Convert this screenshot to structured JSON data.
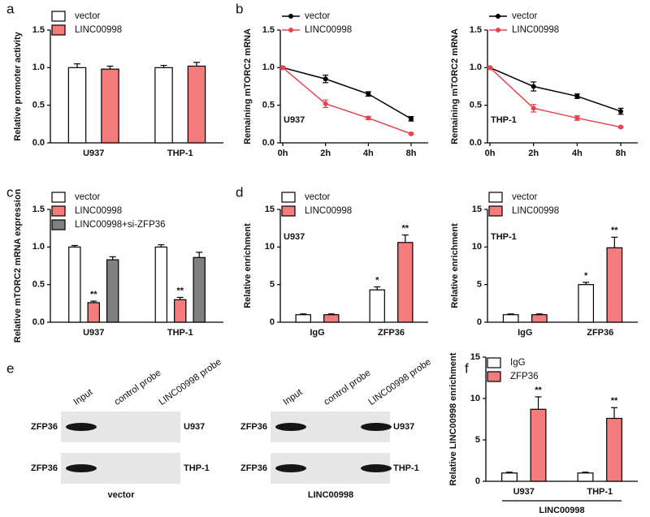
{
  "chart_data": [
    {
      "type": "bar",
      "panel": "a",
      "ylabel": "Relative promoter activity",
      "categories": [
        "U937",
        "THP-1"
      ],
      "series": [
        {
          "name": "vector",
          "color": "#ffffff",
          "values": [
            1.0,
            1.0
          ],
          "errors": [
            0.05,
            0.03
          ]
        },
        {
          "name": "LINC00998",
          "color": "#f47c7c",
          "values": [
            0.98,
            1.02
          ],
          "errors": [
            0.04,
            0.05
          ]
        }
      ],
      "ylim": [
        0,
        1.5
      ],
      "yticks": [
        {
          "value": 0,
          "label": "0.0"
        },
        {
          "value": 0.5,
          "label": "0.5"
        },
        {
          "value": 1,
          "label": "1.0"
        },
        {
          "value": 1.5,
          "label": "1.5"
        }
      ],
      "legend": "top-left"
    },
    {
      "type": "line",
      "panel": "b",
      "ylabel": "Remaining mTORC2 mRNA",
      "annotation": "U937",
      "categories": [
        "0h",
        "2h",
        "4h",
        "8h"
      ],
      "series": [
        {
          "name": "vector",
          "color": "#000000",
          "values": [
            1.0,
            0.85,
            0.65,
            0.32
          ],
          "errors": [
            0.01,
            0.05,
            0.03,
            0.03
          ]
        },
        {
          "name": "LINC00998",
          "color": "#e8434b",
          "values": [
            1.0,
            0.52,
            0.33,
            0.12
          ],
          "errors": [
            0.01,
            0.05,
            0.02,
            0.01
          ]
        }
      ],
      "ylim": [
        0,
        1.5
      ],
      "yticks": [
        {
          "value": 0,
          "label": "0.0"
        },
        {
          "value": 0.5,
          "label": "0.5"
        },
        {
          "value": 1,
          "label": "1.0"
        },
        {
          "value": 1.5,
          "label": "1.5"
        }
      ],
      "legend": "top-left"
    },
    {
      "type": "line",
      "ylabel": "Remaining mTORC2 mRNA",
      "annotation": "THP-1",
      "categories": [
        "0h",
        "2h",
        "4h",
        "8h"
      ],
      "series": [
        {
          "name": "vector",
          "color": "#000000",
          "values": [
            1.0,
            0.75,
            0.62,
            0.42
          ],
          "errors": [
            0.01,
            0.06,
            0.03,
            0.04
          ]
        },
        {
          "name": "LINC00998",
          "color": "#e8434b",
          "values": [
            1.0,
            0.46,
            0.33,
            0.21
          ],
          "errors": [
            0.01,
            0.05,
            0.03,
            0.01
          ]
        }
      ],
      "ylim": [
        0,
        1.5
      ],
      "yticks": [
        {
          "value": 0,
          "label": "0.0"
        },
        {
          "value": 0.5,
          "label": "0.5"
        },
        {
          "value": 1,
          "label": "1.0"
        },
        {
          "value": 1.5,
          "label": "1.5"
        }
      ],
      "legend": "top-left"
    },
    {
      "type": "bar",
      "panel": "c",
      "ylabel": "Relative mTORC2 mRNA expression",
      "categories": [
        "U937",
        "THP-1"
      ],
      "series": [
        {
          "name": "vector",
          "color": "#ffffff",
          "values": [
            1.0,
            1.0
          ],
          "errors": [
            0.02,
            0.03
          ]
        },
        {
          "name": "LINC00998",
          "color": "#f47c7c",
          "values": [
            0.26,
            0.3
          ],
          "errors": [
            0.02,
            0.03
          ],
          "significance": [
            "**",
            "**"
          ]
        },
        {
          "name": "LINC00998+si-ZFP36",
          "color": "#808080",
          "values": [
            0.83,
            0.86
          ],
          "errors": [
            0.04,
            0.07
          ]
        }
      ],
      "ylim": [
        0,
        1.5
      ],
      "yticks": [
        {
          "value": 0,
          "label": "0.0"
        },
        {
          "value": 0.5,
          "label": "0.5"
        },
        {
          "value": 1,
          "label": "1.0"
        },
        {
          "value": 1.5,
          "label": "1.5"
        }
      ],
      "legend": "top-left"
    },
    {
      "type": "bar",
      "panel": "d",
      "ylabel": "Relative enrichment",
      "annotation": "U937",
      "categories": [
        "IgG",
        "ZFP36"
      ],
      "series": [
        {
          "name": "vector",
          "color": "#ffffff",
          "values": [
            1.0,
            4.3
          ],
          "errors": [
            0.1,
            0.4
          ],
          "significance": [
            null,
            "*"
          ]
        },
        {
          "name": "LINC00998",
          "color": "#f47c7c",
          "values": [
            1.0,
            10.6
          ],
          "errors": [
            0.1,
            1.0
          ],
          "significance": [
            null,
            "**"
          ]
        }
      ],
      "ylim": [
        0,
        15
      ],
      "yticks": [
        0,
        5,
        10,
        15
      ],
      "legend": "top-left"
    },
    {
      "type": "bar",
      "ylabel": "Relative enrichment",
      "annotation": "THP-1",
      "categories": [
        "IgG",
        "ZFP36"
      ],
      "series": [
        {
          "name": "vector",
          "color": "#ffffff",
          "values": [
            1.0,
            5.0
          ],
          "errors": [
            0.1,
            0.3
          ],
          "significance": [
            null,
            "*"
          ]
        },
        {
          "name": "LINC00998",
          "color": "#f47c7c",
          "values": [
            1.0,
            9.9
          ],
          "errors": [
            0.1,
            1.4
          ],
          "significance": [
            null,
            "**"
          ]
        }
      ],
      "ylim": [
        0,
        15
      ],
      "yticks": [
        0,
        5,
        10,
        15
      ],
      "legend": "top-left"
    },
    {
      "type": "bar",
      "panel": "f",
      "ylabel": "Relative LINC00998 enrichment",
      "group_label": "LINC00998",
      "categories": [
        "U937",
        "THP-1"
      ],
      "series": [
        {
          "name": "IgG",
          "color": "#ffffff",
          "values": [
            1.0,
            1.0
          ],
          "errors": [
            0.1,
            0.1
          ]
        },
        {
          "name": "ZFP36",
          "color": "#f47c7c",
          "values": [
            8.7,
            7.6
          ],
          "errors": [
            1.5,
            1.3
          ],
          "significance": [
            "**",
            "**"
          ]
        }
      ],
      "ylim": [
        0,
        15
      ],
      "yticks": [
        0,
        5,
        10,
        15
      ],
      "legend": "top-left"
    }
  ],
  "blot": {
    "panel": "e",
    "groups": [
      {
        "caption": "vector",
        "lanes": [
          "Input",
          "control probe",
          "LINC00998 probe"
        ],
        "rows": [
          {
            "protein": "ZFP36",
            "cell": "U937"
          },
          {
            "protein": "ZFP36",
            "cell": "THP-1"
          }
        ]
      },
      {
        "caption": "LINC00998",
        "lanes": [
          "Input",
          "control probe",
          "LINC00998 probe"
        ],
        "rows": [
          {
            "protein": "ZFP36",
            "cell": "U937"
          },
          {
            "protein": "ZFP36",
            "cell": "THP-1"
          }
        ]
      }
    ]
  }
}
